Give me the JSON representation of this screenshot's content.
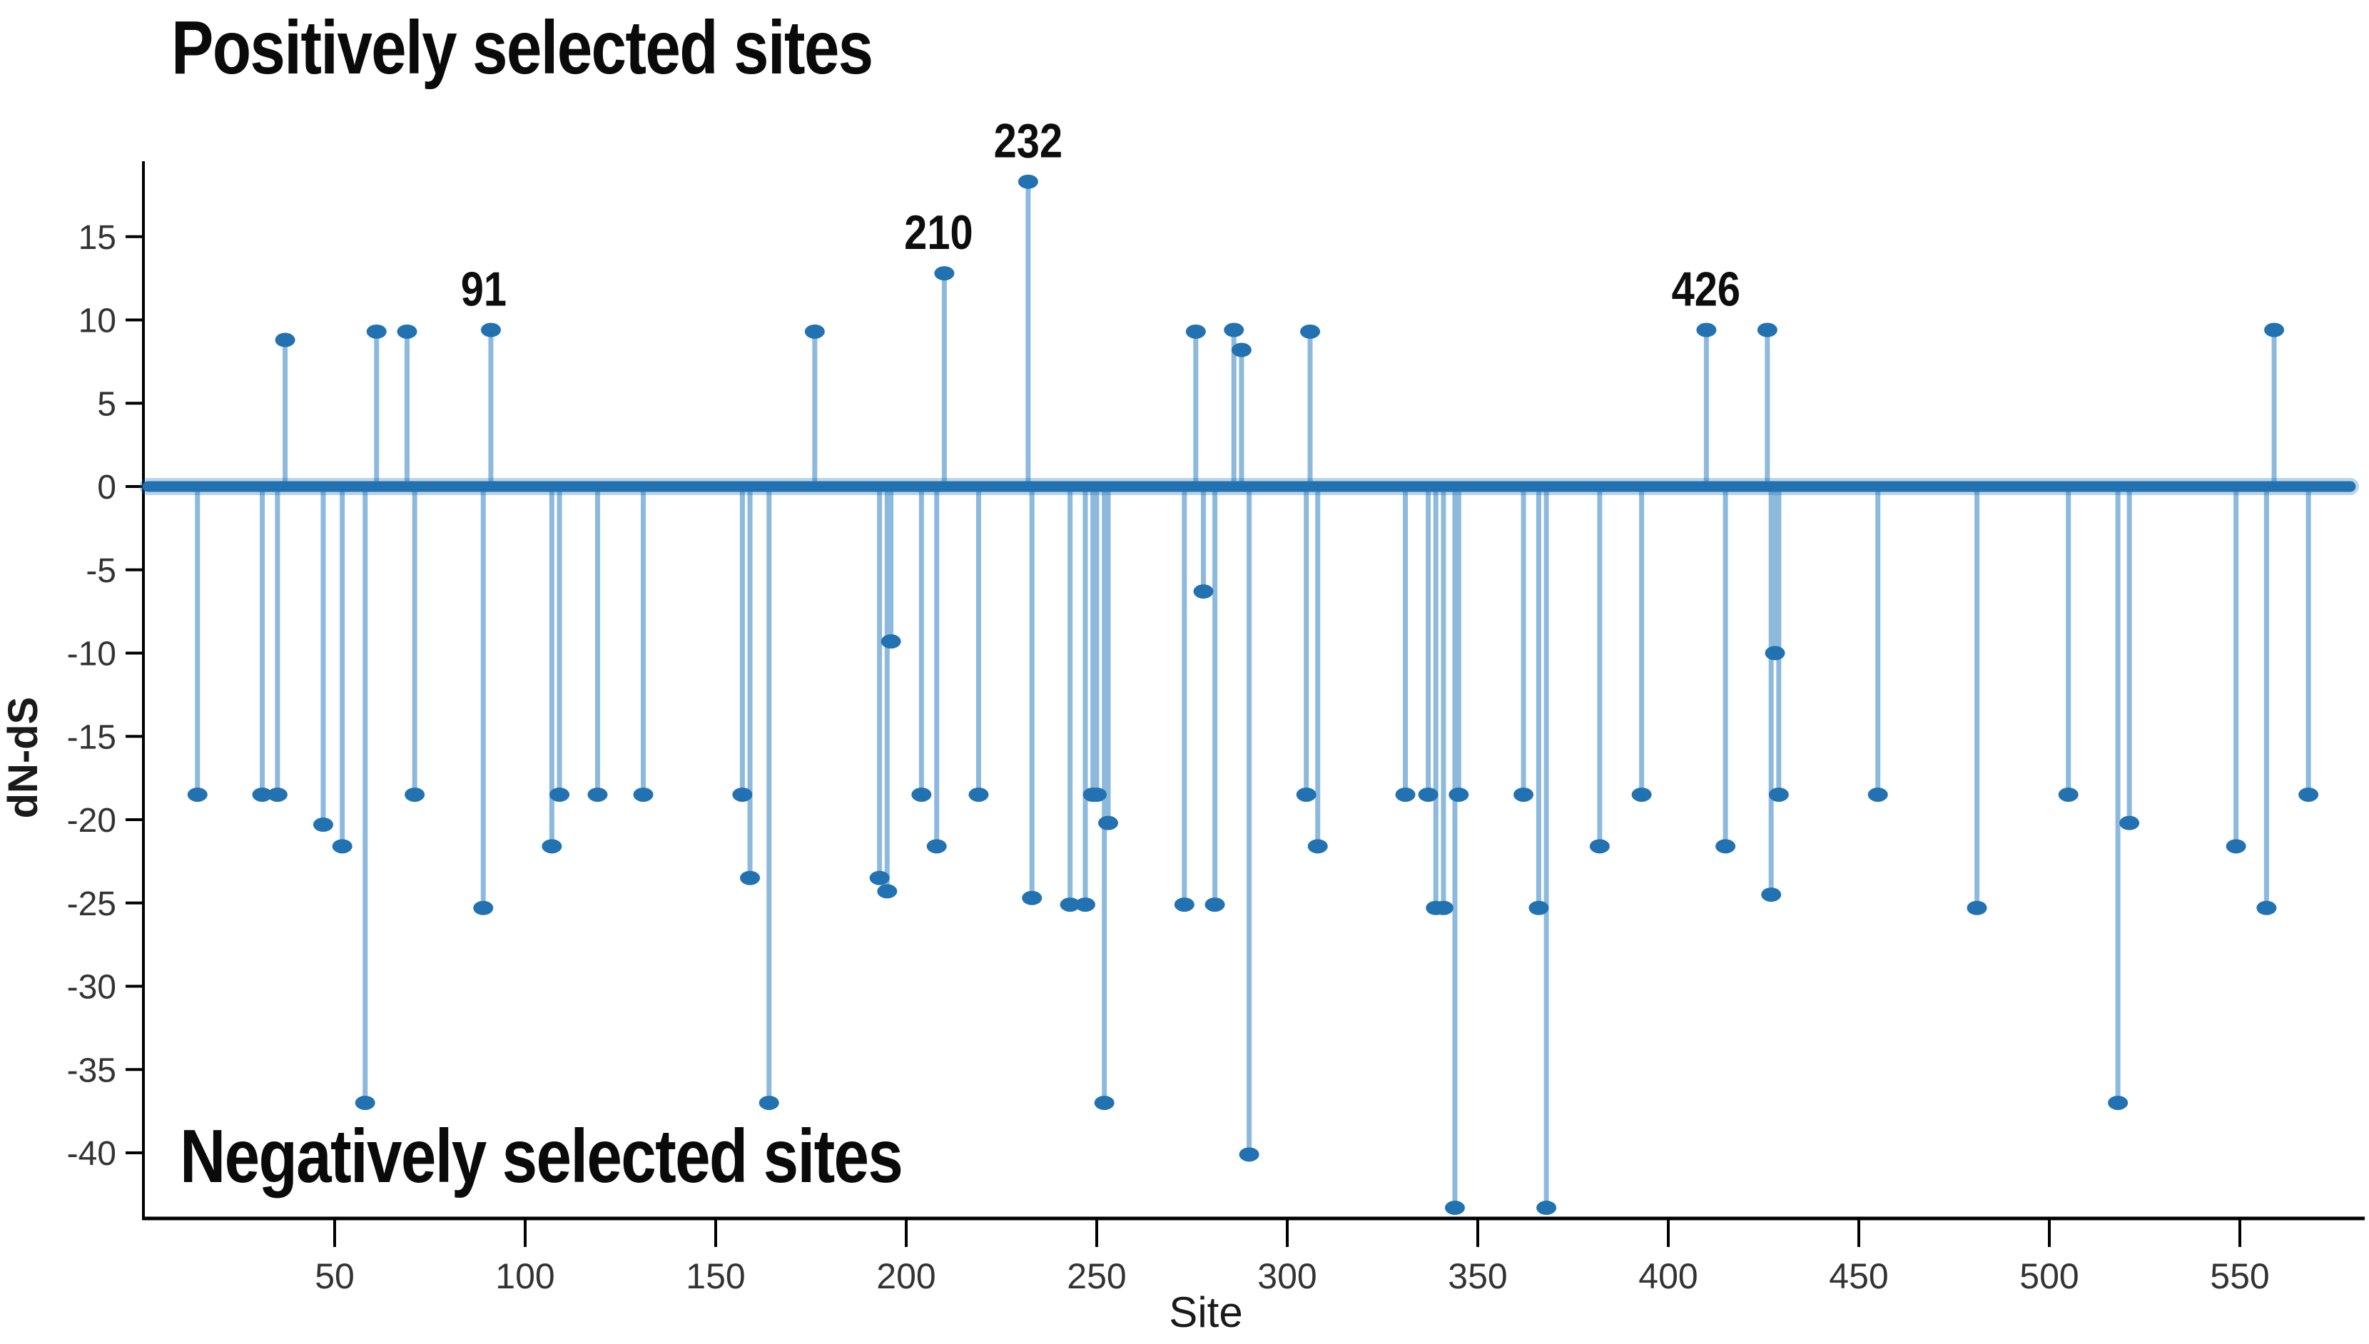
{
  "chart_data": {
    "type": "stem",
    "title": "Positively selected sites",
    "bottom_label": "Negatively selected sites",
    "xlabel": "Site",
    "ylabel": "dN-dS",
    "xlim": [
      0,
      585
    ],
    "ylim": [
      -43.5,
      19.3
    ],
    "x_ticks": [
      50,
      100,
      150,
      200,
      250,
      300,
      350,
      400,
      450,
      500,
      550
    ],
    "y_ticks": [
      15,
      10,
      5,
      0,
      -5,
      -10,
      -15,
      -20,
      -25,
      -30,
      -35,
      -40
    ],
    "baseline_value": 0,
    "baseline_extent": [
      1,
      579
    ],
    "legend": "none",
    "grid": false,
    "positive_points": [
      [
        37,
        8.8
      ],
      [
        61,
        9.3
      ],
      [
        69,
        9.3
      ],
      [
        91,
        9.4
      ],
      [
        176,
        9.3
      ],
      [
        210,
        12.8
      ],
      [
        232,
        18.3
      ],
      [
        276,
        9.3
      ],
      [
        286,
        9.4
      ],
      [
        288,
        8.2
      ],
      [
        306,
        9.3
      ],
      [
        410,
        9.4
      ],
      [
        426,
        9.4
      ],
      [
        559,
        9.4
      ]
    ],
    "negative_points": [
      [
        14,
        -18.5
      ],
      [
        31,
        -18.5
      ],
      [
        35,
        -18.5
      ],
      [
        47,
        -20.3
      ],
      [
        52,
        -21.6
      ],
      [
        58,
        -37.0
      ],
      [
        71,
        -18.5
      ],
      [
        89,
        -25.3
      ],
      [
        107,
        -21.6
      ],
      [
        109,
        -18.5
      ],
      [
        119,
        -18.5
      ],
      [
        131,
        -18.5
      ],
      [
        157,
        -18.5
      ],
      [
        159,
        -23.5
      ],
      [
        164,
        -37.0
      ],
      [
        193,
        -23.5
      ],
      [
        195,
        -24.3
      ],
      [
        196,
        -9.3
      ],
      [
        204,
        -18.5
      ],
      [
        208,
        -21.6
      ],
      [
        219,
        -18.5
      ],
      [
        233,
        -24.7
      ],
      [
        243,
        -25.1
      ],
      [
        247,
        -25.1
      ],
      [
        249,
        -18.5
      ],
      [
        250,
        -18.5
      ],
      [
        252,
        -37.0
      ],
      [
        253,
        -20.2
      ],
      [
        273,
        -25.1
      ],
      [
        278,
        -6.3
      ],
      [
        281,
        -25.1
      ],
      [
        290,
        -40.1
      ],
      [
        305,
        -18.5
      ],
      [
        308,
        -21.6
      ],
      [
        331,
        -18.5
      ],
      [
        337,
        -18.5
      ],
      [
        339,
        -25.3
      ],
      [
        341,
        -25.3
      ],
      [
        344,
        -43.3
      ],
      [
        345,
        -18.5
      ],
      [
        362,
        -18.5
      ],
      [
        366,
        -25.3
      ],
      [
        368,
        -43.3
      ],
      [
        382,
        -21.6
      ],
      [
        393,
        -18.5
      ],
      [
        415,
        -21.6
      ],
      [
        427,
        -24.5
      ],
      [
        428,
        -10.0
      ],
      [
        429,
        -18.5
      ],
      [
        455,
        -18.5
      ],
      [
        481,
        -25.3
      ],
      [
        505,
        -18.5
      ],
      [
        518,
        -37.0
      ],
      [
        521,
        -20.2
      ],
      [
        549,
        -21.6
      ],
      [
        557,
        -25.3
      ],
      [
        568,
        -18.5
      ]
    ],
    "annotations": [
      {
        "label": "91",
        "site": 91,
        "value": 9.4,
        "dx": -10
      },
      {
        "label": "210",
        "site": 210,
        "value": 12.8,
        "dx": -8
      },
      {
        "label": "232",
        "site": 232,
        "value": 18.3,
        "dx": 0
      },
      {
        "label": "426",
        "site": 426,
        "value": 9.4,
        "dx": -86
      }
    ],
    "colors": {
      "marker": "#2272b2",
      "stem": "#8db9dd",
      "baseline": "#2272b2",
      "baseline_halo": "rgba(34,114,178,0.30)",
      "axis": "#000000",
      "tick_text": "#333333",
      "annotation_text": "#0d0d0d"
    }
  }
}
